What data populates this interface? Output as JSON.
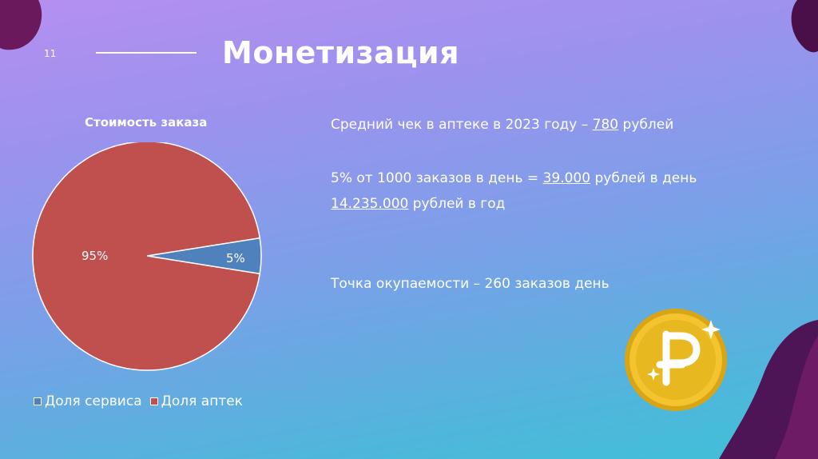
{
  "slide": {
    "number": "11",
    "title": "Монетизация"
  },
  "chart_data": {
    "type": "pie",
    "title": "Стоимость заказа",
    "categories": [
      "Доля сервиса",
      "Доля аптек"
    ],
    "values": [
      5,
      95
    ],
    "data_labels": [
      "5%",
      "95%"
    ],
    "colors": [
      "#4f81bd",
      "#c0504d"
    ],
    "legend_placement": "bottom"
  },
  "info": {
    "avg_check_prefix": "Средний чек в аптеке в 2023 году – ",
    "avg_check_value": "780",
    "avg_check_suffix": " рублей",
    "orders_prefix": "5% от 1000 заказов в день = ",
    "orders_value": "39.000",
    "orders_suffix": " рублей в день",
    "year_value": "14.235.000",
    "year_suffix": " рублей в год",
    "breakeven": "Точка окупаемости – 260 заказов день"
  },
  "icons": {
    "coin": "ruble-coin-icon"
  }
}
